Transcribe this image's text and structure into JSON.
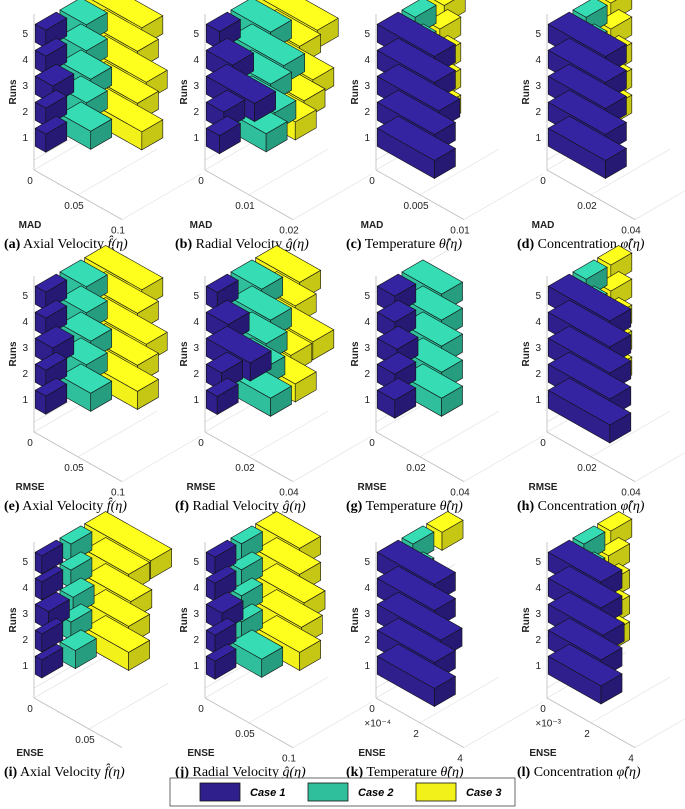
{
  "colors": {
    "case1": "#2e1f8c",
    "case2": "#2fbf9c",
    "case3": "#f2f21a"
  },
  "legend": {
    "items": [
      "Case 1",
      "Case 2",
      "Case 3"
    ],
    "placement": "bottom-center"
  },
  "chart_data": [
    {
      "type": "bar3d",
      "caption": {
        "label": "(a)",
        "text": "Axial Velocity",
        "var": "f̂(η)"
      },
      "xlabel": "MAD",
      "ylabel": "Runs",
      "xticks": [
        "0",
        "0.05",
        "0.1"
      ],
      "xmax": 0.1,
      "xmultiplier": "",
      "runs": [
        1,
        2,
        3,
        4,
        5
      ],
      "series": [
        {
          "name": "Case 1",
          "values": [
            0.012,
            0.012,
            0.02,
            0.012,
            0.012
          ]
        },
        {
          "name": "Case 2",
          "values": [
            0.035,
            0.03,
            0.035,
            0.03,
            0.03
          ]
        },
        {
          "name": "Case 3",
          "values": [
            0.065,
            0.06,
            0.07,
            0.06,
            0.065
          ]
        }
      ]
    },
    {
      "type": "bar3d",
      "caption": {
        "label": "(b)",
        "text": "Radial Velocity",
        "var": "ĝ(η)"
      },
      "xlabel": "MAD",
      "ylabel": "Runs",
      "xticks": [
        "0",
        "0.01",
        "0.02"
      ],
      "xmax": 0.02,
      "xmultiplier": "",
      "runs": [
        1,
        2,
        3,
        4,
        5
      ],
      "series": [
        {
          "name": "Case 1",
          "values": [
            0.003,
            0.004,
            0.011,
            0.006,
            0.003
          ]
        },
        {
          "name": "Case 2",
          "values": [
            0.008,
            0.01,
            0.009,
            0.012,
            0.009
          ]
        },
        {
          "name": "Case 3",
          "values": [
            0.009,
            0.011,
            0.013,
            0.01,
            0.014
          ]
        }
      ]
    },
    {
      "type": "bar3d",
      "caption": {
        "label": "(c)",
        "text": "Temperature",
        "var": "θ̂(η)"
      },
      "xlabel": "MAD",
      "ylabel": "Runs",
      "xticks": [
        "0",
        "0.005",
        "0.01"
      ],
      "xmax": 0.01,
      "xmultiplier": "",
      "runs": [
        1,
        2,
        3,
        4,
        5
      ],
      "series": [
        {
          "name": "Case 1",
          "values": [
            0.0065,
            0.0065,
            0.007,
            0.0065,
            0.0065
          ]
        },
        {
          "name": "Case 2",
          "values": [
            0.0015,
            0.0015,
            0.0015,
            0.0015,
            0.0015
          ]
        },
        {
          "name": "Case 3",
          "values": [
            0.0015,
            0.0015,
            0.0015,
            0.0015,
            0.002
          ]
        }
      ]
    },
    {
      "type": "bar3d",
      "caption": {
        "label": "(d)",
        "text": "Concentration",
        "var": "φ̂(η)"
      },
      "xlabel": "MAD",
      "ylabel": "Runs",
      "xticks": [
        "0",
        "0.02",
        "0.04"
      ],
      "xmax": 0.04,
      "xmultiplier": "",
      "runs": [
        1,
        2,
        3,
        4,
        5
      ],
      "series": [
        {
          "name": "Case 1",
          "values": [
            0.026,
            0.026,
            0.026,
            0.026,
            0.026
          ]
        },
        {
          "name": "Case 2",
          "values": [
            0.006,
            0.006,
            0.006,
            0.006,
            0.006
          ]
        },
        {
          "name": "Case 3",
          "values": [
            0.006,
            0.006,
            0.006,
            0.006,
            0.006
          ]
        }
      ]
    },
    {
      "type": "bar3d",
      "caption": {
        "label": "(e)",
        "text": "Axial Velocity",
        "var": "f̂(η)"
      },
      "xlabel": "RMSE",
      "ylabel": "Runs",
      "xticks": [
        "0",
        "0.05",
        "0.1"
      ],
      "xmax": 0.1,
      "xmultiplier": "",
      "runs": [
        1,
        2,
        3,
        4,
        5
      ],
      "series": [
        {
          "name": "Case 1",
          "values": [
            0.012,
            0.012,
            0.02,
            0.012,
            0.012
          ]
        },
        {
          "name": "Case 2",
          "values": [
            0.035,
            0.03,
            0.035,
            0.03,
            0.03
          ]
        },
        {
          "name": "Case 3",
          "values": [
            0.06,
            0.06,
            0.07,
            0.06,
            0.065
          ]
        }
      ]
    },
    {
      "type": "bar3d",
      "caption": {
        "label": "(f)",
        "text": "Radial Velocity",
        "var": "ĝ(η)"
      },
      "xlabel": "RMSE",
      "ylabel": "Runs",
      "xticks": [
        "0",
        "0.02",
        "0.04"
      ],
      "xmax": 0.04,
      "xmultiplier": "",
      "runs": [
        1,
        2,
        3,
        4,
        5
      ],
      "series": [
        {
          "name": "Case 1",
          "values": [
            0.005,
            0.007,
            0.02,
            0.01,
            0.005
          ]
        },
        {
          "name": "Case 2",
          "values": [
            0.018,
            0.015,
            0.016,
            0.018,
            0.014
          ]
        },
        {
          "name": "Case 3",
          "values": [
            0.018,
            0.016,
            0.026,
            0.018,
            0.02
          ]
        }
      ]
    },
    {
      "type": "bar3d",
      "caption": {
        "label": "(g)",
        "text": "Temperature",
        "var": "θ̂(η)"
      },
      "xlabel": "RMSE",
      "ylabel": "Runs",
      "xticks": [
        "0",
        "0.02",
        "0.04"
      ],
      "xmax": 0.04,
      "xmultiplier": "",
      "runs": [
        1,
        2,
        3,
        4,
        5
      ],
      "series": [
        {
          "name": "Case 1",
          "values": [
            0.008,
            0.008,
            0.009,
            0.008,
            0.008
          ]
        },
        {
          "name": "Case 2",
          "values": [
            0.018,
            0.018,
            0.018,
            0.018,
            0.018
          ]
        },
        {
          "name": "Case 3",
          "values": [
            0.0,
            0.0,
            0.0,
            0.0,
            0.0
          ]
        }
      ]
    },
    {
      "type": "bar3d",
      "caption": {
        "label": "(h)",
        "text": "Concentration",
        "var": "φ̂(η)"
      },
      "xlabel": "RMSE",
      "ylabel": "Runs",
      "xticks": [
        "0",
        "0.02",
        "0.04"
      ],
      "xmax": 0.04,
      "xmultiplier": "",
      "runs": [
        1,
        2,
        3,
        4,
        5
      ],
      "series": [
        {
          "name": "Case 1",
          "values": [
            0.028,
            0.028,
            0.028,
            0.028,
            0.028
          ]
        },
        {
          "name": "Case 2",
          "values": [
            0.006,
            0.006,
            0.006,
            0.006,
            0.006
          ]
        },
        {
          "name": "Case 3",
          "values": [
            0.006,
            0.006,
            0.006,
            0.006,
            0.006
          ]
        }
      ]
    },
    {
      "type": "bar3d",
      "caption": {
        "label": "(i)",
        "text": "Axial Velocity",
        "var": "f̂(η)"
      },
      "xlabel": "ENSE",
      "ylabel": "Runs",
      "xticks": [
        "0",
        "0.05"
      ],
      "xmax": 0.08,
      "xmultiplier": "",
      "runs": [
        1,
        2,
        3,
        4,
        5
      ],
      "series": [
        {
          "name": "Case 1",
          "values": [
            0.006,
            0.006,
            0.012,
            0.006,
            0.006
          ]
        },
        {
          "name": "Case 2",
          "values": [
            0.014,
            0.01,
            0.012,
            0.01,
            0.01
          ]
        },
        {
          "name": "Case 3",
          "values": [
            0.04,
            0.04,
            0.042,
            0.04,
            0.06
          ]
        }
      ]
    },
    {
      "type": "bar3d",
      "caption": {
        "label": "(j)",
        "text": "Radial Velocity",
        "var": "ĝ(η)"
      },
      "xlabel": "ENSE",
      "ylabel": "Runs",
      "xticks": [
        "0",
        "0.05",
        "0.1"
      ],
      "xmax": 0.1,
      "xmultiplier": "",
      "runs": [
        1,
        2,
        3,
        4,
        5
      ],
      "series": [
        {
          "name": "Case 1",
          "values": [
            0.01,
            0.01,
            0.018,
            0.01,
            0.01
          ]
        },
        {
          "name": "Case 2",
          "values": [
            0.035,
            0.012,
            0.012,
            0.012,
            0.012
          ]
        },
        {
          "name": "Case 3",
          "values": [
            0.05,
            0.052,
            0.055,
            0.05,
            0.05
          ]
        }
      ]
    },
    {
      "type": "bar3d",
      "caption": {
        "label": "(k)",
        "text": "Temperature",
        "var": "θ̂(η)"
      },
      "xlabel": "ENSE",
      "ylabel": "Runs",
      "xticks": [
        "0",
        "2",
        "4"
      ],
      "xmax": 4,
      "xmultiplier": "×10⁻⁴",
      "runs": [
        1,
        2,
        3,
        4,
        5
      ],
      "series": [
        {
          "name": "Case 1",
          "values": [
            2.6,
            2.6,
            2.9,
            2.6,
            2.6
          ]
        },
        {
          "name": "Case 2",
          "values": [
            0.5,
            0.5,
            0.5,
            0.5,
            0.5
          ]
        },
        {
          "name": "Case 3",
          "values": [
            0.0,
            0.0,
            0.0,
            0.0,
            0.7
          ]
        }
      ]
    },
    {
      "type": "bar3d",
      "caption": {
        "label": "(l)",
        "text": "Concentration",
        "var": "φ̂(η)"
      },
      "xlabel": "ENSE",
      "ylabel": "Runs",
      "xticks": [
        "0",
        "2",
        "4"
      ],
      "xmax": 4,
      "xmultiplier": "×10⁻³",
      "runs": [
        1,
        2,
        3,
        4,
        5
      ],
      "series": [
        {
          "name": "Case 1",
          "values": [
            2.4,
            2.4,
            2.5,
            2.4,
            2.4
          ]
        },
        {
          "name": "Case 2",
          "values": [
            0.5,
            0.5,
            0.5,
            0.5,
            0.5
          ]
        },
        {
          "name": "Case 3",
          "values": [
            0.5,
            0.5,
            0.5,
            0.5,
            0.6
          ]
        }
      ]
    }
  ]
}
